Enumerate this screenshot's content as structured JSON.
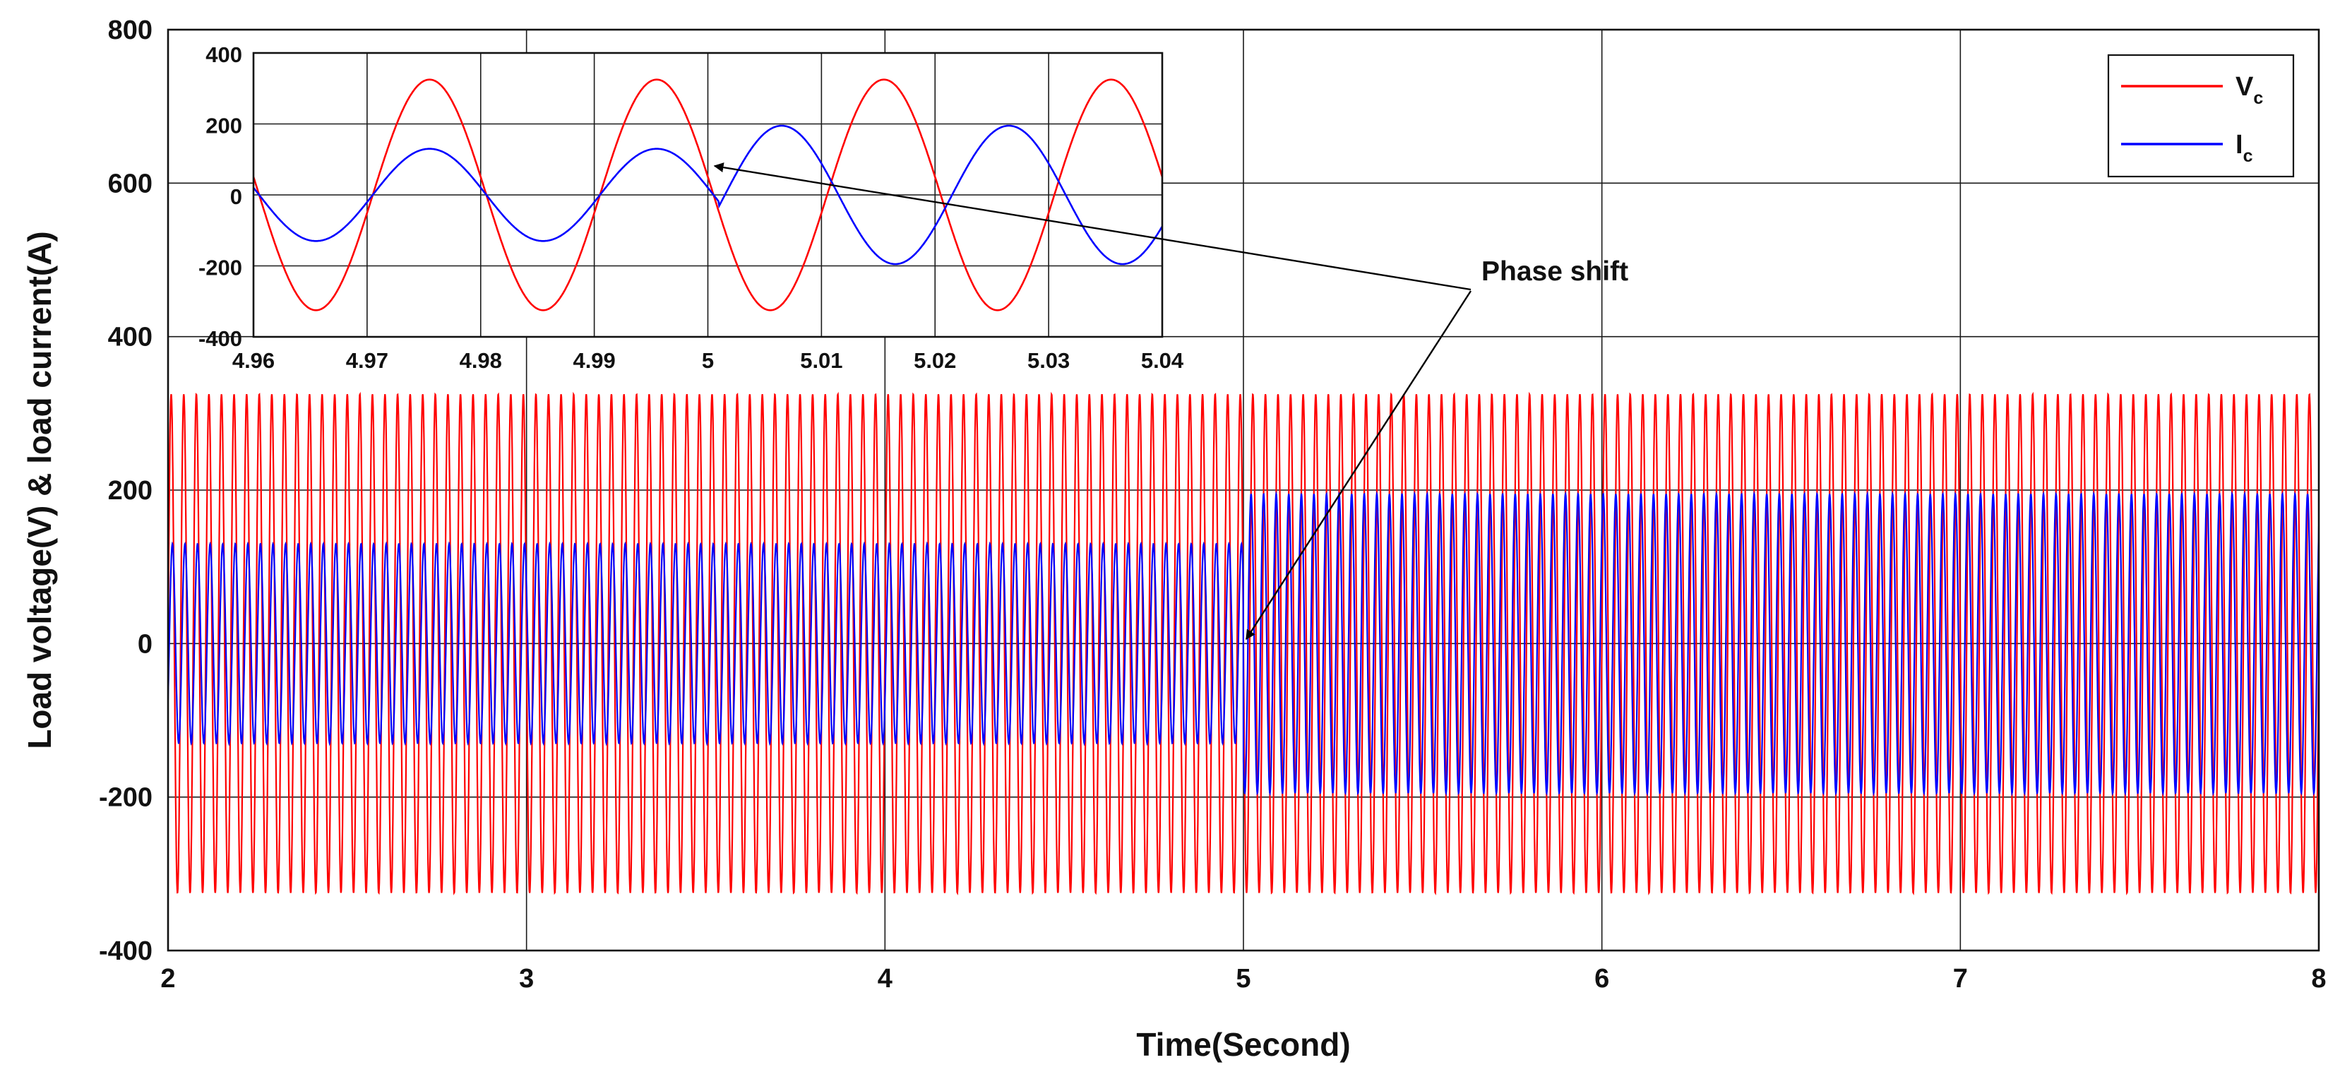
{
  "chart_data": [
    {
      "type": "line",
      "xlabel": "Time(Second)",
      "ylabel": "Load voltage(V) & load current(A)",
      "xlim": [
        2,
        8
      ],
      "ylim": [
        -400,
        800
      ],
      "xticks": [
        "2",
        "3",
        "4",
        "5",
        "6",
        "7",
        "8"
      ],
      "yticks": [
        "-400",
        "-200",
        "0",
        "200",
        "400",
        "600",
        "800"
      ],
      "grid": true,
      "legend_position": "top-right",
      "series": [
        {
          "name": "V",
          "subscript": "c",
          "color": "#ff0000",
          "amplitude": 325,
          "frequency_hz": 50
        },
        {
          "name": "I",
          "subscript": "c",
          "color": "#0000ff",
          "amplitude_before_5s": 130,
          "amplitude_after_5s": 195,
          "frequency_hz": 50
        }
      ],
      "annotation": {
        "text": "Phase shift",
        "arrows_to_x": [
          5.001,
          5.0
        ]
      }
    },
    {
      "type": "line",
      "role": "inset-zoom",
      "xlim": [
        4.96,
        5.04
      ],
      "ylim": [
        -400,
        400
      ],
      "xticks": [
        "4.96",
        "4.97",
        "4.98",
        "4.99",
        "5",
        "5.01",
        "5.02",
        "5.03",
        "5.04"
      ],
      "yticks": [
        "-400",
        "-200",
        "0",
        "200",
        "400"
      ],
      "grid": true,
      "series": [
        {
          "name": "V",
          "subscript": "c",
          "color": "#ff0000",
          "amplitude": 325
        },
        {
          "name": "I",
          "subscript": "c",
          "color": "#0000ff",
          "amplitude_before_5s": 130,
          "amplitude_after_5s": 195,
          "phase_shift_at": 5.0
        }
      ]
    }
  ]
}
